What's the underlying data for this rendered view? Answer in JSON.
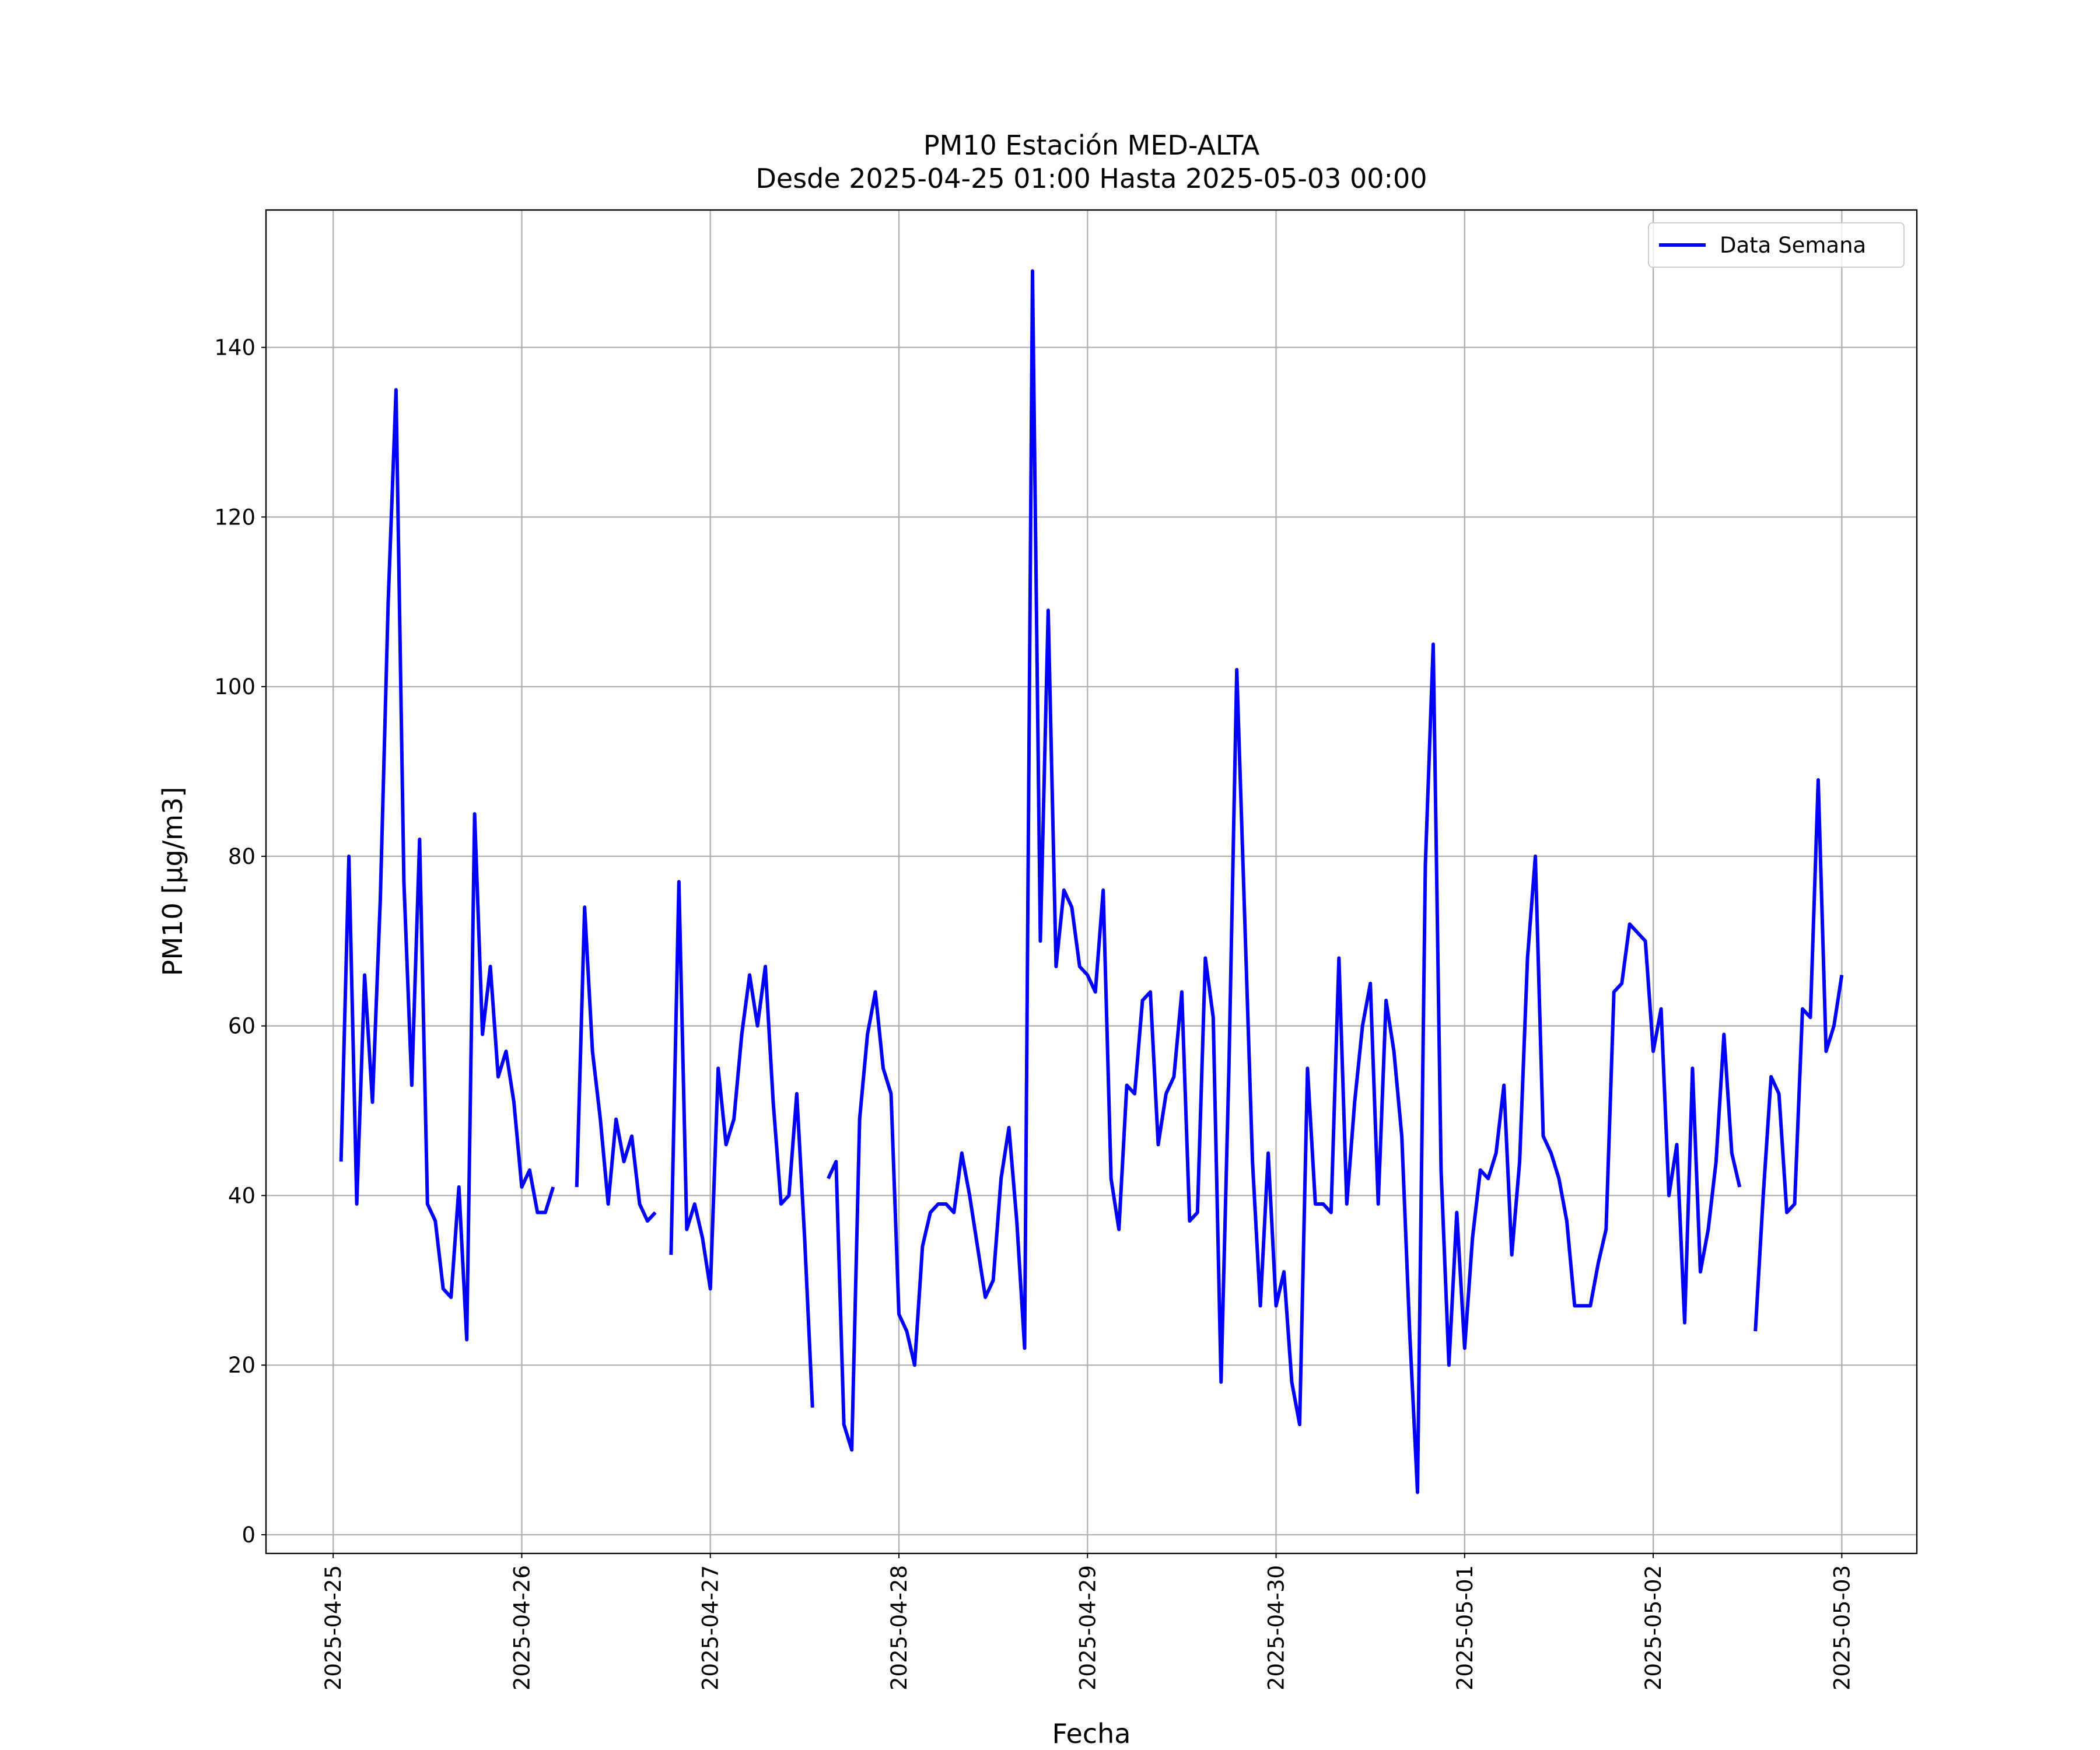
{
  "chart_data": {
    "type": "line",
    "title": "PM10 Estación MED-ALTA",
    "subtitle": "Desde 2025-04-25 01:00 Hasta 2025-05-03 00:00",
    "xlabel": "Fecha",
    "ylabel": "PM10 [μg/m3]",
    "x": [
      "2025-04-25 01:00",
      "2025-04-25 02:00",
      "2025-04-25 03:00",
      "2025-04-25 04:00",
      "2025-04-25 05:00",
      "2025-04-25 06:00",
      "2025-04-25 07:00",
      "2025-04-25 08:00",
      "2025-04-25 09:00",
      "2025-04-25 10:00",
      "2025-04-25 11:00",
      "2025-04-25 12:00",
      "2025-04-25 13:00",
      "2025-04-25 14:00",
      "2025-04-25 15:00",
      "2025-04-25 16:00",
      "2025-04-25 17:00",
      "2025-04-25 18:00",
      "2025-04-25 19:00",
      "2025-04-25 20:00",
      "2025-04-25 21:00",
      "2025-04-25 22:00",
      "2025-04-25 23:00",
      "2025-04-26 00:00",
      "2025-04-26 01:00",
      "2025-04-26 02:00",
      "2025-04-26 03:00",
      "2025-04-26 04:00",
      "2025-04-26 05:00",
      "2025-04-26 06:00",
      "2025-04-26 07:00",
      "2025-04-26 08:00",
      "2025-04-26 09:00",
      "2025-04-26 10:00",
      "2025-04-26 11:00",
      "2025-04-26 12:00",
      "2025-04-26 13:00",
      "2025-04-26 14:00",
      "2025-04-26 15:00",
      "2025-04-26 16:00",
      "2025-04-26 17:00",
      "2025-04-26 18:00",
      "2025-04-26 19:00",
      "2025-04-26 20:00",
      "2025-04-26 21:00",
      "2025-04-26 22:00",
      "2025-04-26 23:00",
      "2025-04-27 00:00",
      "2025-04-27 01:00",
      "2025-04-27 02:00",
      "2025-04-27 03:00",
      "2025-04-27 04:00",
      "2025-04-27 05:00",
      "2025-04-27 06:00",
      "2025-04-27 07:00",
      "2025-04-27 08:00",
      "2025-04-27 09:00",
      "2025-04-27 10:00",
      "2025-04-27 11:00",
      "2025-04-27 12:00",
      "2025-04-27 13:00",
      "2025-04-27 14:00",
      "2025-04-27 15:00",
      "2025-04-27 16:00",
      "2025-04-27 17:00",
      "2025-04-27 18:00",
      "2025-04-27 19:00",
      "2025-04-27 20:00",
      "2025-04-27 21:00",
      "2025-04-27 22:00",
      "2025-04-27 23:00",
      "2025-04-28 00:00",
      "2025-04-28 01:00",
      "2025-04-28 02:00",
      "2025-04-28 03:00",
      "2025-04-28 04:00",
      "2025-04-28 05:00",
      "2025-04-28 06:00",
      "2025-04-28 07:00",
      "2025-04-28 08:00",
      "2025-04-28 09:00",
      "2025-04-28 10:00",
      "2025-04-28 11:00",
      "2025-04-28 12:00",
      "2025-04-28 13:00",
      "2025-04-28 14:00",
      "2025-04-28 15:00",
      "2025-04-28 16:00",
      "2025-04-28 17:00",
      "2025-04-28 18:00",
      "2025-04-28 19:00",
      "2025-04-28 20:00",
      "2025-04-28 21:00",
      "2025-04-28 22:00",
      "2025-04-28 23:00",
      "2025-04-29 00:00",
      "2025-04-29 01:00",
      "2025-04-29 02:00",
      "2025-04-29 03:00",
      "2025-04-29 04:00",
      "2025-04-29 05:00",
      "2025-04-29 06:00",
      "2025-04-29 07:00",
      "2025-04-29 08:00",
      "2025-04-29 09:00",
      "2025-04-29 10:00",
      "2025-04-29 11:00",
      "2025-04-29 12:00",
      "2025-04-29 13:00",
      "2025-04-29 14:00",
      "2025-04-29 15:00",
      "2025-04-29 16:00",
      "2025-04-29 17:00",
      "2025-04-29 18:00",
      "2025-04-29 19:00",
      "2025-04-29 20:00",
      "2025-04-29 21:00",
      "2025-04-29 22:00",
      "2025-04-29 23:00",
      "2025-04-30 00:00",
      "2025-04-30 01:00",
      "2025-04-30 02:00",
      "2025-04-30 03:00",
      "2025-04-30 04:00",
      "2025-04-30 05:00",
      "2025-04-30 06:00",
      "2025-04-30 07:00",
      "2025-04-30 08:00",
      "2025-04-30 09:00",
      "2025-04-30 10:00",
      "2025-04-30 11:00",
      "2025-04-30 12:00",
      "2025-04-30 13:00",
      "2025-04-30 14:00",
      "2025-04-30 15:00",
      "2025-04-30 16:00",
      "2025-04-30 17:00",
      "2025-04-30 18:00",
      "2025-04-30 19:00",
      "2025-04-30 20:00",
      "2025-04-30 21:00",
      "2025-04-30 22:00",
      "2025-04-30 23:00",
      "2025-05-01 00:00",
      "2025-05-01 01:00",
      "2025-05-01 02:00",
      "2025-05-01 03:00",
      "2025-05-01 04:00",
      "2025-05-01 05:00",
      "2025-05-01 06:00",
      "2025-05-01 07:00",
      "2025-05-01 08:00",
      "2025-05-01 09:00",
      "2025-05-01 10:00",
      "2025-05-01 11:00",
      "2025-05-01 12:00",
      "2025-05-01 13:00",
      "2025-05-01 14:00",
      "2025-05-01 15:00",
      "2025-05-01 16:00",
      "2025-05-01 17:00",
      "2025-05-01 18:00",
      "2025-05-01 19:00",
      "2025-05-01 20:00",
      "2025-05-01 21:00",
      "2025-05-01 22:00",
      "2025-05-01 23:00",
      "2025-05-02 00:00",
      "2025-05-02 01:00",
      "2025-05-02 02:00",
      "2025-05-02 03:00",
      "2025-05-02 04:00",
      "2025-05-02 05:00",
      "2025-05-02 06:00",
      "2025-05-02 07:00",
      "2025-05-02 08:00",
      "2025-05-02 09:00",
      "2025-05-02 10:00",
      "2025-05-02 11:00",
      "2025-05-02 12:00",
      "2025-05-02 13:00",
      "2025-05-02 14:00",
      "2025-05-02 15:00",
      "2025-05-02 16:00",
      "2025-05-02 17:00",
      "2025-05-02 18:00",
      "2025-05-02 19:00",
      "2025-05-02 20:00",
      "2025-05-02 21:00",
      "2025-05-02 22:00",
      "2025-05-02 23:00",
      "2025-05-03 00:00"
    ],
    "series": [
      {
        "name": "Data Semana",
        "color": "#0000ff",
        "values": [
          44,
          80,
          39,
          66,
          51,
          75,
          110,
          135,
          77,
          53,
          82,
          39,
          37,
          29,
          28,
          41,
          23,
          85,
          59,
          67,
          54,
          57,
          51,
          41,
          43,
          38,
          38,
          41,
          null,
          null,
          41,
          74,
          57,
          49,
          39,
          49,
          44,
          47,
          39,
          37,
          38,
          null,
          33,
          77,
          36,
          39,
          35,
          29,
          55,
          46,
          49,
          59,
          66,
          60,
          67,
          51,
          39,
          40,
          52,
          35,
          15,
          null,
          42,
          44,
          13,
          10,
          49,
          59,
          64,
          55,
          52,
          26,
          24,
          20,
          34,
          38,
          39,
          39,
          38,
          45,
          40,
          34,
          28,
          30,
          42,
          48,
          37,
          22,
          149,
          70,
          109,
          67,
          76,
          74,
          67,
          66,
          64,
          76,
          42,
          36,
          53,
          52,
          63,
          64,
          46,
          52,
          54,
          64,
          37,
          38,
          68,
          61,
          18,
          55,
          102,
          73,
          44,
          27,
          45,
          27,
          31,
          18,
          13,
          55,
          39,
          39,
          38,
          68,
          39,
          51,
          60,
          65,
          39,
          63,
          57,
          47,
          24,
          5,
          79,
          105,
          43,
          20,
          38,
          22,
          35,
          43,
          42,
          45,
          53,
          33,
          44,
          68,
          80,
          47,
          45,
          42,
          37,
          27,
          27,
          27,
          32,
          36,
          64,
          65,
          72,
          71,
          70,
          57,
          62,
          40,
          46,
          25,
          55,
          31,
          36,
          44,
          59,
          45,
          41,
          null,
          24,
          40,
          54,
          52,
          38,
          39,
          62,
          61,
          89,
          57,
          60,
          66
        ]
      }
    ],
    "xlim": [
      "2025-04-24 15:27",
      "2025-05-03 09:33"
    ],
    "xticks": [
      "2025-04-25",
      "2025-04-26",
      "2025-04-27",
      "2025-04-28",
      "2025-04-29",
      "2025-04-30",
      "2025-05-01",
      "2025-05-02",
      "2025-05-03"
    ],
    "ylim": [
      -2.2,
      156.2
    ],
    "yticks": [
      0,
      20,
      40,
      60,
      80,
      100,
      120,
      140
    ],
    "grid": true,
    "legend": "upper right"
  }
}
